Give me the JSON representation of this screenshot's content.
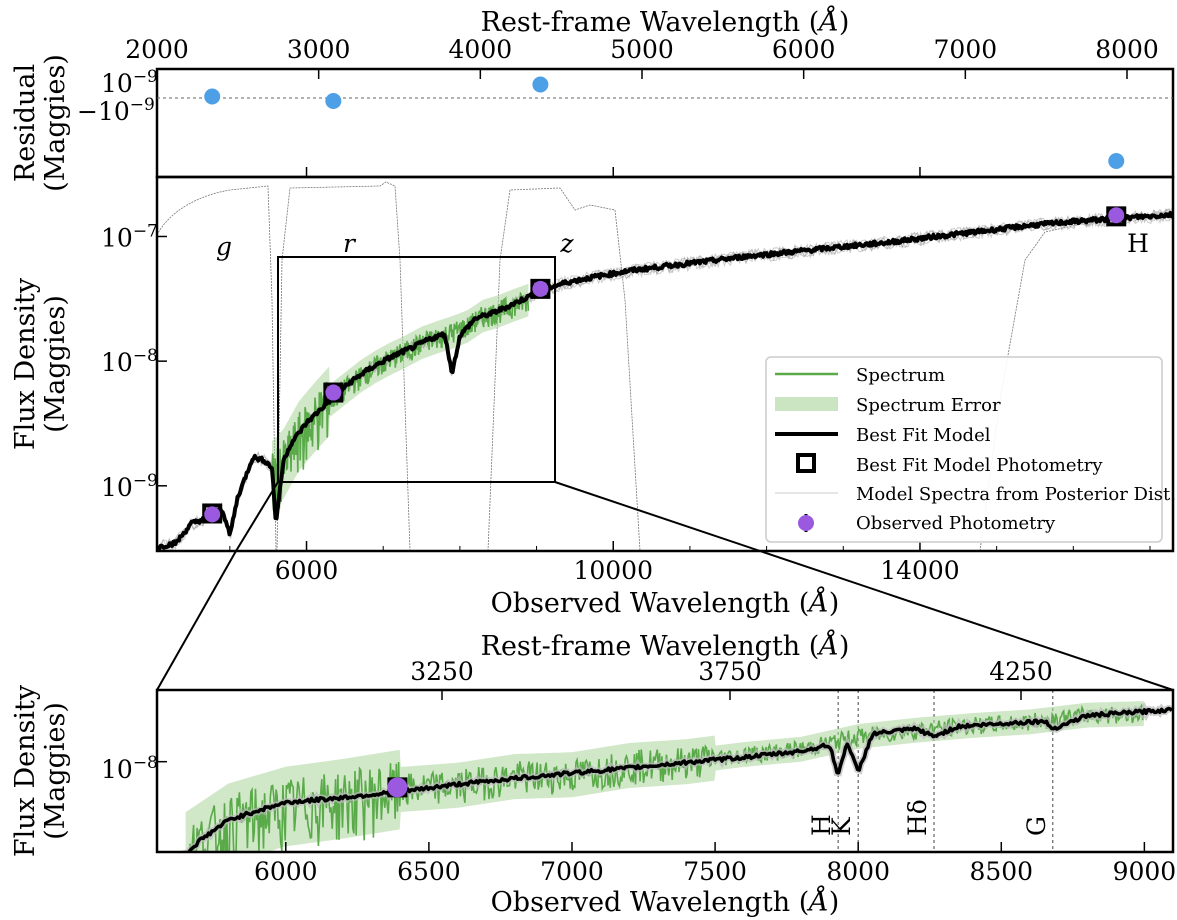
{
  "chart_data": [
    {
      "panel": "residual",
      "type": "scatter",
      "xlabel": "",
      "ylabel": "Residual (Maggies)",
      "secondary_xlabel": "Rest-frame Wavelength (Å)",
      "secondary_xticks": [
        "2000",
        "3000",
        "4000",
        "5000",
        "6000",
        "7000",
        "8000"
      ],
      "yticks": [
        "10⁻⁹",
        "−10⁻⁹"
      ],
      "series": [
        {
          "name": "",
          "color": "#4ea0e6",
          "points": [
            [
              4770,
              0.1
            ],
            [
              6350,
              -0.2
            ],
            [
              9050,
              0.9
            ],
            [
              16560,
              -4.2
            ]
          ]
        }
      ]
    },
    {
      "panel": "main",
      "type": "line",
      "xlabel": "Observed Wavelength (Å)",
      "ylabel": "Flux Density (Maggies)",
      "yscale": "log",
      "xlim": [
        4050,
        17300
      ],
      "ylim": [
        3e-10,
        3e-07
      ],
      "xticks": [
        "6000",
        "10000",
        "14000"
      ],
      "yticks": [
        "10⁻⁷",
        "10⁻⁸",
        "10⁻⁹"
      ],
      "band_labels": [
        "g",
        "r",
        "z",
        "H"
      ],
      "legend_position": "lower-right",
      "legend": [
        {
          "label": "Spectrum",
          "color": "#5aaa4a"
        },
        {
          "label": "Spectrum Error",
          "color": "#a9d39a"
        },
        {
          "label": "Best Fit Model",
          "color": "#000000"
        },
        {
          "label": "Best Fit Model Photometry",
          "color": "#000000"
        },
        {
          "label": "Model Spectra from Posterior Dist.",
          "color": "#999999"
        },
        {
          "label": "Observed Photometry",
          "color": "#9b59e0"
        }
      ],
      "model": [
        [
          4050,
          3.2e-10
        ],
        [
          4300,
          3.5e-10
        ],
        [
          4500,
          5e-10
        ],
        [
          4700,
          5.5e-10
        ],
        [
          4900,
          6.5e-10
        ],
        [
          5000,
          4e-10
        ],
        [
          5100,
          8e-10
        ],
        [
          5300,
          1.7e-09
        ],
        [
          5450,
          1.6e-09
        ],
        [
          5550,
          1.4e-09
        ],
        [
          5600,
          5e-10
        ],
        [
          5700,
          1.6e-09
        ],
        [
          5800,
          2.2e-09
        ],
        [
          6000,
          3.2e-09
        ],
        [
          6200,
          4.2e-09
        ],
        [
          6400,
          5.5e-09
        ],
        [
          6600,
          7e-09
        ],
        [
          6800,
          8.5e-09
        ],
        [
          7000,
          1e-08
        ],
        [
          7200,
          1.15e-08
        ],
        [
          7400,
          1.3e-08
        ],
        [
          7600,
          1.5e-08
        ],
        [
          7800,
          1.65e-08
        ],
        [
          7900,
          8e-09
        ],
        [
          8000,
          1.6e-08
        ],
        [
          8200,
          2.2e-08
        ],
        [
          8400,
          2.4e-08
        ],
        [
          8600,
          2.7e-08
        ],
        [
          8900,
          3.3e-08
        ],
        [
          9100,
          3.8e-08
        ],
        [
          9400,
          4.3e-08
        ],
        [
          9800,
          4.8e-08
        ],
        [
          10200,
          5.3e-08
        ],
        [
          10700,
          5.8e-08
        ],
        [
          11200,
          6.3e-08
        ],
        [
          11800,
          7e-08
        ],
        [
          12400,
          7.6e-08
        ],
        [
          13000,
          8.3e-08
        ],
        [
          13600,
          9e-08
        ],
        [
          14200,
          1e-07
        ],
        [
          14800,
          1.1e-07
        ],
        [
          15400,
          1.22e-07
        ],
        [
          16000,
          1.32e-07
        ],
        [
          16600,
          1.4e-07
        ],
        [
          17300,
          1.5e-07
        ]
      ],
      "spectrum": [
        [
          5550,
          1.2e-09
        ],
        [
          5700,
          1.5e-09
        ],
        [
          5900,
          2.5e-09
        ],
        [
          6100,
          3.5e-09
        ],
        [
          6300,
          4.8e-09
        ],
        [
          6500,
          6e-09
        ],
        [
          6700,
          7.5e-09
        ],
        [
          6900,
          9e-09
        ],
        [
          7100,
          1.05e-08
        ],
        [
          7300,
          1.2e-08
        ],
        [
          7500,
          1.4e-08
        ],
        [
          7700,
          1.55e-08
        ],
        [
          7900,
          1.7e-08
        ],
        [
          8100,
          1.9e-08
        ],
        [
          8300,
          2.3e-08
        ],
        [
          8500,
          2.5e-08
        ],
        [
          8700,
          2.8e-08
        ],
        [
          8900,
          3.1e-08
        ]
      ],
      "model_photometry": [
        [
          4770,
          6e-10
        ],
        [
          6350,
          5.6e-09
        ],
        [
          9050,
          3.8e-08
        ],
        [
          16560,
          1.45e-07
        ]
      ],
      "observed_photometry": [
        [
          4770,
          5.9e-10
        ],
        [
          6350,
          5.6e-09
        ],
        [
          9050,
          3.8e-08
        ],
        [
          16560,
          1.48e-07
        ]
      ]
    },
    {
      "panel": "zoom",
      "type": "line",
      "xlabel": "Observed Wavelength (Å)",
      "ylabel": "Flux Density (Maggies)",
      "secondary_xlabel": "Rest-frame Wavelength (Å)",
      "yscale": "log",
      "xlim": [
        5550,
        9100
      ],
      "xticks": [
        "6000",
        "6500",
        "7000",
        "7500",
        "8000",
        "8500",
        "9000"
      ],
      "secondary_xticks": [
        "3250",
        "3750",
        "4250"
      ],
      "yticks": [
        "10⁻⁸"
      ],
      "line_markers": [
        {
          "label": "H",
          "x": 7930
        },
        {
          "label": "K",
          "x": 8000
        },
        {
          "label": "Hδ",
          "x": 8265
        },
        {
          "label": "G",
          "x": 8680
        }
      ],
      "model": [
        [
          5550,
          2.6e-09
        ],
        [
          5650,
          2.9e-09
        ],
        [
          5700,
          3.5e-09
        ],
        [
          5800,
          4.6e-09
        ],
        [
          5900,
          5.2e-09
        ],
        [
          6000,
          5.8e-09
        ],
        [
          6200,
          6.2e-09
        ],
        [
          6400,
          6.7e-09
        ],
        [
          6600,
          7.4e-09
        ],
        [
          6800,
          8e-09
        ],
        [
          7000,
          8.6e-09
        ],
        [
          7200,
          9.2e-09
        ],
        [
          7400,
          9.9e-09
        ],
        [
          7600,
          1.06e-08
        ],
        [
          7800,
          1.15e-08
        ],
        [
          7900,
          1.25e-08
        ],
        [
          7930,
          8.3e-09
        ],
        [
          7960,
          1.3e-08
        ],
        [
          8000,
          8.7e-09
        ],
        [
          8050,
          1.45e-08
        ],
        [
          8200,
          1.55e-08
        ],
        [
          8265,
          1.4e-08
        ],
        [
          8350,
          1.6e-08
        ],
        [
          8500,
          1.66e-08
        ],
        [
          8650,
          1.72e-08
        ],
        [
          8680,
          1.55e-08
        ],
        [
          8800,
          1.85e-08
        ],
        [
          9000,
          1.95e-08
        ],
        [
          9100,
          2e-08
        ]
      ],
      "spectrum": [
        [
          5650,
          3e-09
        ],
        [
          5800,
          4.4e-09
        ],
        [
          6000,
          5.5e-09
        ],
        [
          6200,
          6.1e-09
        ],
        [
          6400,
          6.9e-09
        ],
        [
          6600,
          7.3e-09
        ],
        [
          6800,
          8.2e-09
        ],
        [
          7000,
          8.4e-09
        ],
        [
          7200,
          9.5e-09
        ],
        [
          7400,
          1e-08
        ],
        [
          7600,
          1.1e-08
        ],
        [
          7800,
          1.18e-08
        ],
        [
          8000,
          1.4e-08
        ],
        [
          8200,
          1.52e-08
        ],
        [
          8400,
          1.62e-08
        ],
        [
          8600,
          1.7e-08
        ],
        [
          8800,
          1.86e-08
        ],
        [
          9000,
          1.9e-08
        ]
      ],
      "model_photometry": [
        [
          6390,
          7.1e-09
        ]
      ],
      "observed_photometry": [
        [
          6390,
          7.1e-09
        ]
      ]
    }
  ],
  "colors": {
    "spectrum": "#5aaa4a",
    "spectrum_error": "#a9d39a",
    "model": "#000000",
    "posterior": "#999999",
    "observed": "#9b59e0",
    "residual": "#4ea0e6"
  }
}
